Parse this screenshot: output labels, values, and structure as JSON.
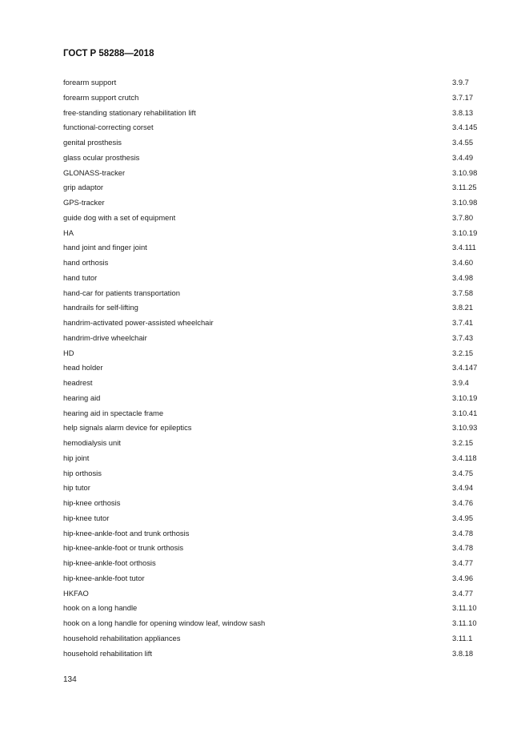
{
  "header": {
    "title": "ГОСТ Р 58288—2018"
  },
  "entries": [
    {
      "term": "forearm support",
      "ref": "3.9.7"
    },
    {
      "term": "forearm support crutch",
      "ref": "3.7.17"
    },
    {
      "term": "free-standing stationary rehabilitation lift",
      "ref": "3.8.13"
    },
    {
      "term": "functional-correcting corset",
      "ref": "3.4.145"
    },
    {
      "term": "genital prosthesis",
      "ref": "3.4.55"
    },
    {
      "term": "glass ocular prosthesis",
      "ref": "3.4.49"
    },
    {
      "term": "GLONASS-tracker",
      "ref": "3.10.98"
    },
    {
      "term": "grip adaptor",
      "ref": "3.11.25"
    },
    {
      "term": "GPS-tracker",
      "ref": "3.10.98"
    },
    {
      "term": "guide dog with a set of equipment",
      "ref": "3.7.80"
    },
    {
      "term": "HA",
      "ref": "3.10.19"
    },
    {
      "term": "hand joint and finger joint",
      "ref": "3.4.111"
    },
    {
      "term": "hand orthosis",
      "ref": "3.4.60"
    },
    {
      "term": "hand tutor",
      "ref": "3.4.98"
    },
    {
      "term": "hand-car for patients transportation",
      "ref": "3.7.58"
    },
    {
      "term": "handrails for self-lifting",
      "ref": "3.8.21"
    },
    {
      "term": "handrim-activated power-assisted wheelchair",
      "ref": "3.7.41"
    },
    {
      "term": "handrim-drive wheelchair",
      "ref": "3.7.43"
    },
    {
      "term": "HD",
      "ref": "3.2.15"
    },
    {
      "term": "head holder",
      "ref": "3.4.147"
    },
    {
      "term": "headrest",
      "ref": "3.9.4"
    },
    {
      "term": "hearing aid",
      "ref": "3.10.19"
    },
    {
      "term": "hearing aid in spectacle frame",
      "ref": "3.10.41"
    },
    {
      "term": "help signals alarm device for epileptics",
      "ref": "3.10.93"
    },
    {
      "term": "hemodialysis unit",
      "ref": "3.2.15"
    },
    {
      "term": "hip joint",
      "ref": "3.4.118"
    },
    {
      "term": "hip orthosis",
      "ref": "3.4.75"
    },
    {
      "term": "hip tutor",
      "ref": "3.4.94"
    },
    {
      "term": "hip-knee orthosis",
      "ref": "3.4.76"
    },
    {
      "term": "hip-knee tutor",
      "ref": "3.4.95"
    },
    {
      "term": "hip-knee-ankle-foot and trunk orthosis",
      "ref": "3.4.78"
    },
    {
      "term": "hip-knee-ankle-foot or trunk orthosis",
      "ref": "3.4.78"
    },
    {
      "term": "hip-knee-ankle-foot orthosis",
      "ref": "3.4.77"
    },
    {
      "term": "hip-knee-ankle-foot tutor",
      "ref": "3.4.96"
    },
    {
      "term": "HKFAO",
      "ref": "3.4.77"
    },
    {
      "term": "hook on a long handle",
      "ref": "3.11.10"
    },
    {
      "term": "hook on a long handle for opening window leaf, window sash",
      "ref": "3.11.10"
    },
    {
      "term": "household rehabilitation appliances",
      "ref": "3.11.1"
    },
    {
      "term": "household rehabilitation lift",
      "ref": "3.8.18"
    }
  ],
  "footer": {
    "page_number": "134"
  }
}
